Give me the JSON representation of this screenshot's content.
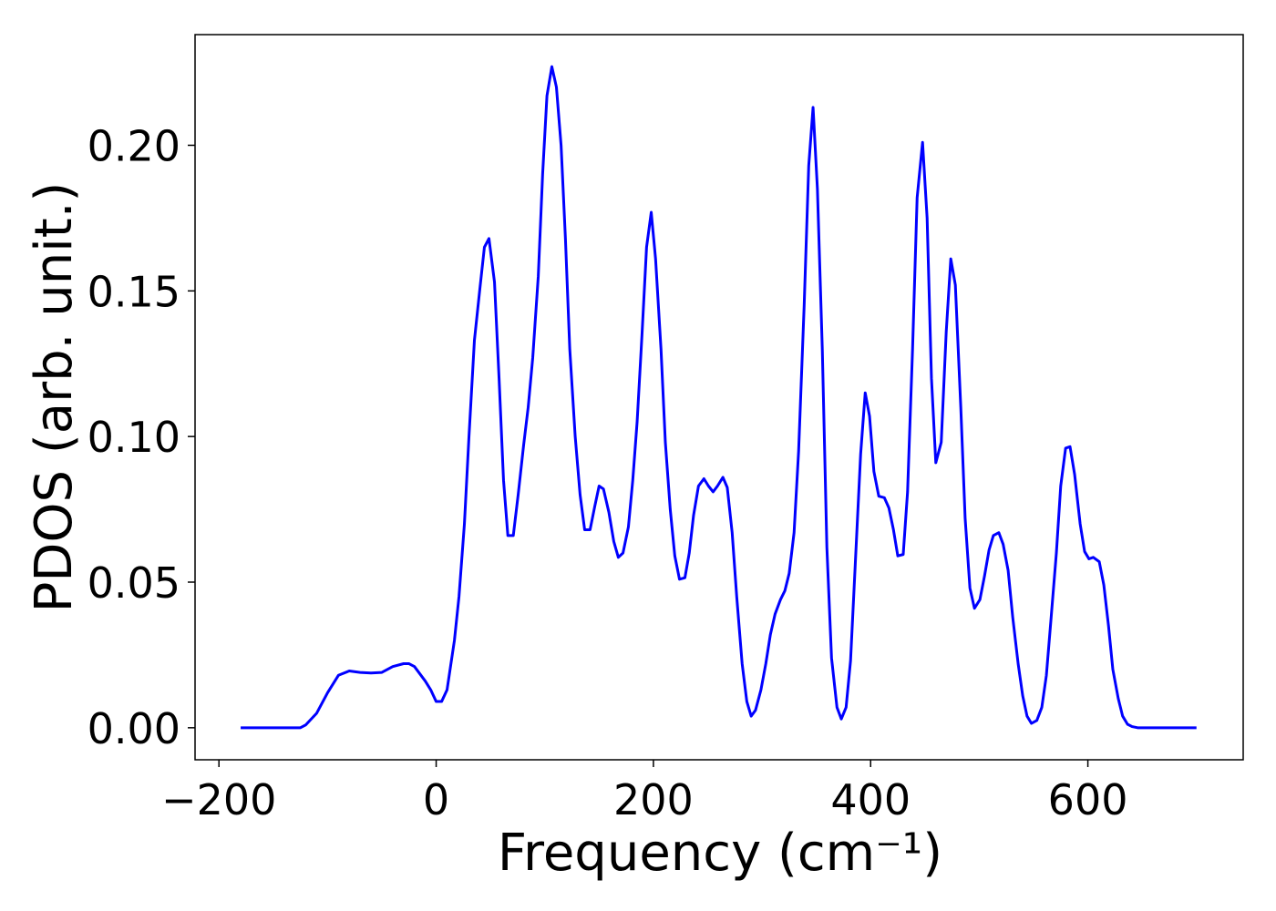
{
  "chart_data": {
    "type": "line",
    "xlabel": "Frequency (cm⁻¹)",
    "ylabel": "PDOS (arb. unit.)",
    "color": "#0000ff",
    "x": [
      -180,
      -160,
      -140,
      -125,
      -120,
      -110,
      -100,
      -90,
      -80,
      -70,
      -60,
      -50,
      -40,
      -30,
      -25,
      -20,
      -10,
      -5,
      0,
      5,
      10,
      16.8,
      21,
      26,
      30.2,
      35.2,
      40.3,
      44.4,
      48.6,
      53.7,
      57.9,
      62,
      66,
      71,
      75.5,
      80.5,
      84.7,
      88.9,
      94,
      98,
      102,
      106.5,
      110.7,
      115,
      119,
      123,
      128,
      132.5,
      136.7,
      141.7,
      146,
      150,
      154,
      159,
      163.5,
      167.7,
      172,
      177,
      181,
      185,
      189.5,
      193.7,
      198,
      202,
      207,
      211,
      215.5,
      219.7,
      224,
      229,
      233,
      237,
      241.5,
      246.5,
      250.7,
      255,
      259,
      264,
      268,
      272.5,
      276.7,
      281.7,
      286,
      290,
      294,
      299,
      303.5,
      307.7,
      312,
      317,
      321,
      325,
      329.5,
      333.7,
      338.8,
      343,
      347,
      351,
      355.5,
      359.7,
      364,
      369,
      373,
      377.4,
      381.5,
      385.7,
      390.8,
      395,
      399,
      403,
      407.5,
      412.6,
      416.8,
      421,
      425,
      430,
      434,
      438.6,
      442.8,
      447.8,
      452,
      456,
      460,
      465,
      469.6,
      473.8,
      478,
      483,
      487,
      491.4,
      495.6,
      500.6,
      504.8,
      509,
      513,
      518,
      522,
      526.6,
      530.8,
      535.8,
      540,
      544,
      548,
      553,
      557.6,
      561.8,
      566,
      571,
      575,
      579.5,
      583.6,
      587.8,
      592.9,
      597,
      601,
      605,
      610.5,
      614.7,
      619,
      623,
      628,
      632,
      636.5,
      640.7,
      645.8,
      660,
      680,
      700
    ],
    "values": [
      0,
      0,
      0,
      0,
      0.001,
      0.005,
      0.012,
      0.018,
      0.0195,
      0.019,
      0.0188,
      0.019,
      0.021,
      0.022,
      0.022,
      0.021,
      0.016,
      0.013,
      0.009,
      0.009,
      0.013,
      0.03,
      0.045,
      0.07,
      0.1,
      0.133,
      0.151,
      0.165,
      0.168,
      0.153,
      0.12,
      0.085,
      0.066,
      0.066,
      0.08,
      0.097,
      0.11,
      0.127,
      0.155,
      0.19,
      0.217,
      0.227,
      0.22,
      0.2,
      0.168,
      0.13,
      0.1,
      0.08,
      0.068,
      0.068,
      0.076,
      0.083,
      0.082,
      0.074,
      0.064,
      0.0585,
      0.06,
      0.069,
      0.085,
      0.105,
      0.135,
      0.165,
      0.177,
      0.161,
      0.13,
      0.098,
      0.075,
      0.059,
      0.051,
      0.0515,
      0.06,
      0.073,
      0.083,
      0.0855,
      0.083,
      0.081,
      0.083,
      0.086,
      0.0825,
      0.067,
      0.045,
      0.022,
      0.009,
      0.004,
      0.006,
      0.013,
      0.022,
      0.032,
      0.039,
      0.044,
      0.047,
      0.053,
      0.067,
      0.095,
      0.145,
      0.193,
      0.213,
      0.185,
      0.13,
      0.062,
      0.024,
      0.007,
      0.003,
      0.007,
      0.023,
      0.055,
      0.094,
      0.115,
      0.107,
      0.088,
      0.0795,
      0.079,
      0.0755,
      0.068,
      0.059,
      0.0595,
      0.081,
      0.13,
      0.182,
      0.201,
      0.175,
      0.12,
      0.091,
      0.098,
      0.136,
      0.161,
      0.152,
      0.11,
      0.072,
      0.048,
      0.041,
      0.044,
      0.052,
      0.061,
      0.066,
      0.067,
      0.063,
      0.054,
      0.038,
      0.022,
      0.011,
      0.004,
      0.0015,
      0.0025,
      0.007,
      0.018,
      0.037,
      0.06,
      0.083,
      0.096,
      0.0965,
      0.087,
      0.07,
      0.0605,
      0.058,
      0.0585,
      0.057,
      0.049,
      0.035,
      0.02,
      0.01,
      0.004,
      0.0012,
      0.0004,
      0,
      0,
      0,
      0
    ],
    "xlim": [
      -222,
      743
    ],
    "ylim": [
      -0.011,
      0.238
    ],
    "xticks": [
      {
        "value": -200,
        "label": "−200"
      },
      0,
      200,
      400,
      600
    ],
    "yticks": [
      {
        "value": 0,
        "label": "0.00"
      },
      {
        "value": 0.05,
        "label": "0.05"
      },
      {
        "value": 0.1,
        "label": "0.10"
      },
      {
        "value": 0.15,
        "label": "0.15"
      },
      {
        "value": 0.2,
        "label": "0.20"
      }
    ]
  }
}
